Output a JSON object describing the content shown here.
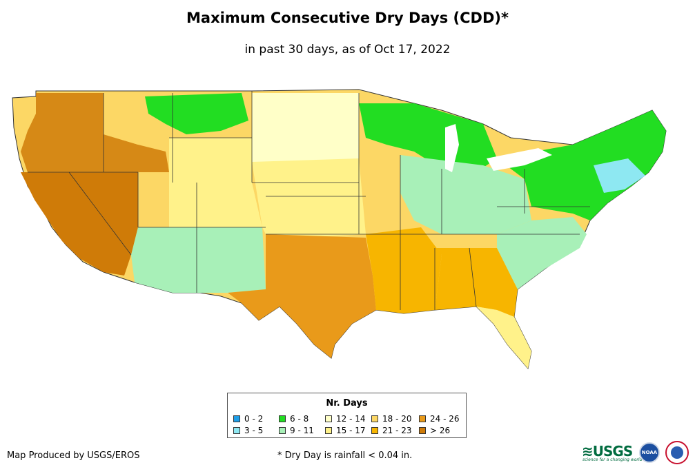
{
  "title": "Maximum Consecutive Dry Days (CDD)*",
  "subtitle": "in past 30 days, as of Oct 17, 2022",
  "legend": {
    "title": "Nr. Days",
    "items": [
      {
        "label": "0 - 2",
        "color": "#1e9ee8"
      },
      {
        "label": "3 - 5",
        "color": "#8ee8f2"
      },
      {
        "label": "6 - 8",
        "color": "#22dd22"
      },
      {
        "label": "9 - 11",
        "color": "#a8f0b8"
      },
      {
        "label": "12 - 14",
        "color": "#ffffc8"
      },
      {
        "label": "15 - 17",
        "color": "#fff28a"
      },
      {
        "label": "18 - 20",
        "color": "#fcd765"
      },
      {
        "label": "21 - 23",
        "color": "#f7b500"
      },
      {
        "label": "24 - 26",
        "color": "#e99a1a"
      },
      {
        "label": "> 26",
        "color": "#cf7b08"
      }
    ]
  },
  "footer": {
    "credit": "Map Produced by USGS/EROS",
    "note": "* Dry Day is rainfall < 0.04 in."
  },
  "logos": {
    "usgs": "≋USGS",
    "usgs_tagline": "science for a changing world",
    "noaa": "NOAA"
  },
  "map_regions": [
    {
      "name": "pacific-northwest",
      "color": "#cf7b08"
    },
    {
      "name": "california-nevada",
      "color": "#cf7b08"
    },
    {
      "name": "idaho-montana",
      "color": "#fcd765"
    },
    {
      "name": "montana-green",
      "color": "#22dd22"
    },
    {
      "name": "wyoming-colorado",
      "color": "#fff28a"
    },
    {
      "name": "four-corners",
      "color": "#a8f0b8"
    },
    {
      "name": "north-plains",
      "color": "#ffffc8"
    },
    {
      "name": "central-plains",
      "color": "#fff28a"
    },
    {
      "name": "texas",
      "color": "#e99a1a"
    },
    {
      "name": "lower-mississippi",
      "color": "#f7b500"
    },
    {
      "name": "southeast",
      "color": "#f7b500"
    },
    {
      "name": "great-lakes",
      "color": "#22dd22"
    },
    {
      "name": "ohio-valley",
      "color": "#a8f0b8"
    },
    {
      "name": "northeast",
      "color": "#22dd22"
    },
    {
      "name": "mid-atlantic-coast",
      "color": "#8ee8f2"
    },
    {
      "name": "carolinas",
      "color": "#a8f0b8"
    },
    {
      "name": "florida",
      "color": "#fff28a"
    }
  ]
}
